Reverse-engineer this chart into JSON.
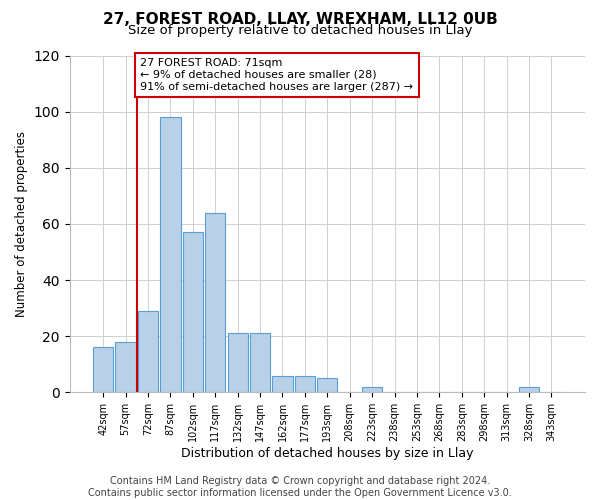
{
  "title": "27, FOREST ROAD, LLAY, WREXHAM, LL12 0UB",
  "subtitle": "Size of property relative to detached houses in Llay",
  "xlabel": "Distribution of detached houses by size in Llay",
  "ylabel": "Number of detached properties",
  "bar_labels": [
    "42sqm",
    "57sqm",
    "72sqm",
    "87sqm",
    "102sqm",
    "117sqm",
    "132sqm",
    "147sqm",
    "162sqm",
    "177sqm",
    "193sqm",
    "208sqm",
    "223sqm",
    "238sqm",
    "253sqm",
    "268sqm",
    "283sqm",
    "298sqm",
    "313sqm",
    "328sqm",
    "343sqm"
  ],
  "bar_values": [
    16,
    18,
    29,
    98,
    57,
    64,
    21,
    21,
    6,
    6,
    5,
    0,
    2,
    0,
    0,
    0,
    0,
    0,
    0,
    2,
    0
  ],
  "bar_color": "#b8d0e8",
  "bar_edge_color": "#5a9fd4",
  "vline_color": "#cc0000",
  "annotation_text": "27 FOREST ROAD: 71sqm\n← 9% of detached houses are smaller (28)\n91% of semi-detached houses are larger (287) →",
  "annotation_box_color": "#ffffff",
  "annotation_box_edge_color": "#cc0000",
  "ylim": [
    0,
    120
  ],
  "yticks": [
    0,
    20,
    40,
    60,
    80,
    100,
    120
  ],
  "footer_line1": "Contains HM Land Registry data © Crown copyright and database right 2024.",
  "footer_line2": "Contains public sector information licensed under the Open Government Licence v3.0.",
  "bg_color": "#ffffff",
  "grid_color": "#d0d0d0",
  "title_fontsize": 11,
  "subtitle_fontsize": 9.5,
  "annotation_fontsize": 8,
  "footer_fontsize": 7,
  "vline_bin_index": 2
}
